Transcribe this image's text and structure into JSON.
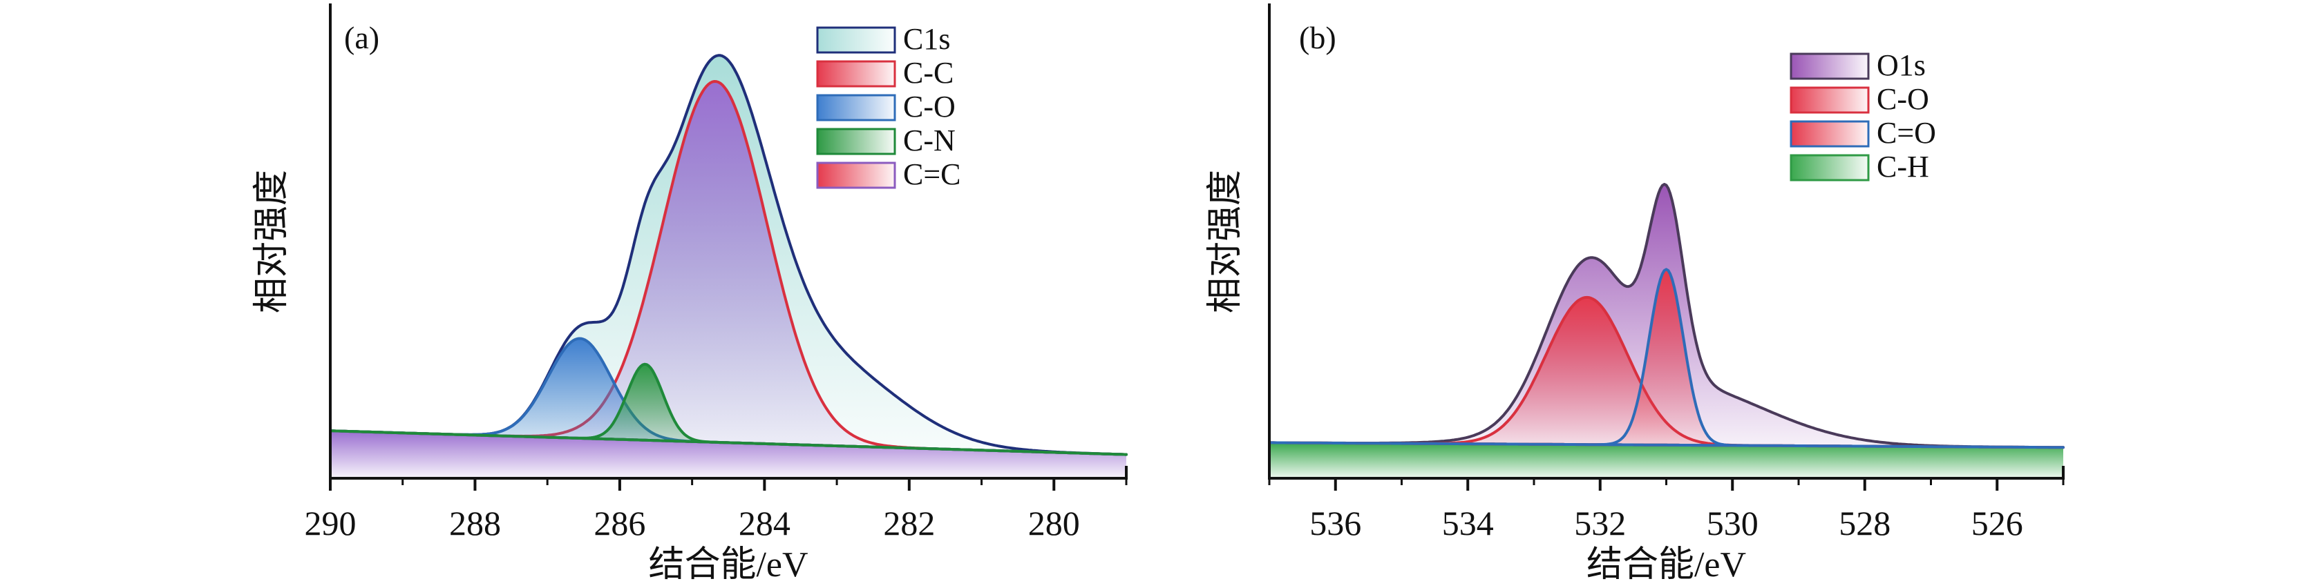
{
  "chart_data": [
    {
      "type": "area",
      "panel_label": "(a)",
      "xlabel": "结合能/eV",
      "ylabel": "相对强度",
      "xlim": [
        290,
        279
      ],
      "x_reversed": true,
      "xticks": [
        290,
        288,
        286,
        284,
        282,
        280
      ],
      "y_ticks_shown": false,
      "legend_position": "top-right",
      "series": [
        {
          "name": "C1s",
          "color": "#1f2f7a",
          "fill": "#a9ddd9",
          "kind": "envelope",
          "components": [
            [
              284.68,
              0.76,
              0.72
            ],
            [
              286.55,
              0.21,
              0.44
            ],
            [
              285.65,
              0.16,
              0.25
            ],
            [
              283.15,
              0.17,
              1.0
            ]
          ]
        },
        {
          "name": "C-C",
          "color": "#d9303f",
          "fill": "#e53a4d",
          "kind": "peak",
          "center": 284.68,
          "height": 0.76,
          "sigma": 0.72
        },
        {
          "name": "C-O",
          "color": "#2e6cb8",
          "fill": "#3f7fcf",
          "kind": "peak",
          "center": 286.55,
          "height": 0.21,
          "sigma": 0.44
        },
        {
          "name": "C-N",
          "color": "#1f8a3a",
          "fill": "#2f9a45",
          "kind": "peak",
          "center": 285.65,
          "height": 0.16,
          "sigma": 0.25
        },
        {
          "name": "C=C",
          "color": "#8b5bbf",
          "fill": "#9a6fd0",
          "kind": "baseline",
          "start": 0.1,
          "end": 0.05
        }
      ]
    },
    {
      "type": "area",
      "panel_label": "(b)",
      "xlabel": "结合能/eV",
      "ylabel": "相对强度",
      "xlim": [
        537,
        525
      ],
      "x_reversed": true,
      "xticks": [
        536,
        534,
        532,
        530,
        528,
        526
      ],
      "y_ticks_shown": false,
      "legend_position": "top-right",
      "series": [
        {
          "name": "O1s",
          "color": "#4a3a5a",
          "fill": "#9a55b5",
          "kind": "envelope",
          "components": [
            [
              532.2,
              0.31,
              0.62
            ],
            [
              531.0,
              0.37,
              0.26
            ],
            [
              530.9,
              0.13,
              1.35
            ]
          ]
        },
        {
          "name": "C-O",
          "color": "#d9303f",
          "fill": "#e53a4d",
          "kind": "peak",
          "center": 532.2,
          "height": 0.31,
          "sigma": 0.62
        },
        {
          "name": "C=O",
          "color": "#2e6cb8",
          "fill": "#3f7fcf",
          "kind": "peak",
          "center": 531.0,
          "height": 0.37,
          "sigma": 0.26
        },
        {
          "name": "C-H",
          "color": "#2f9a45",
          "fill": "#3aa84e",
          "kind": "baseline",
          "start": 0.075,
          "end": 0.065
        }
      ]
    }
  ]
}
